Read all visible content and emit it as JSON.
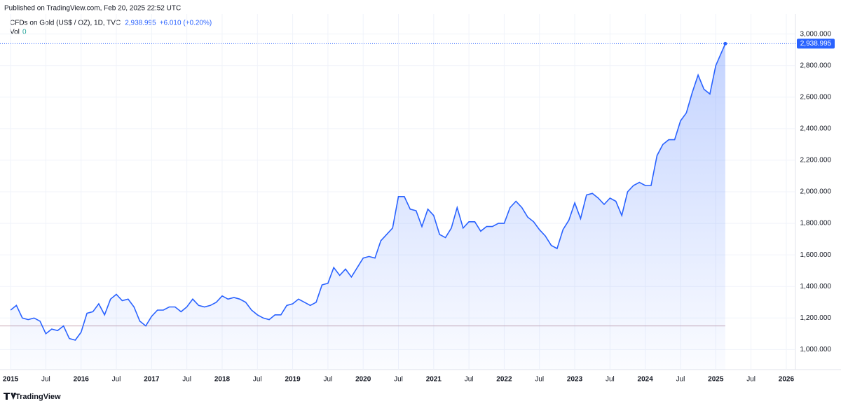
{
  "published": "Published on TradingView.com, Feb 20, 2025 22:52 UTC",
  "footer": "TradingView",
  "chart_data": {
    "type": "area",
    "title": "CFDs on Gold (US$ / OZ), 1D, TVC",
    "change": "+6.010 (+0.20%)",
    "volume_label": "Vol",
    "volume_value": 0,
    "last_price": {
      "value": 2938.995,
      "label": "2,938.995"
    },
    "reference_line": 1150,
    "x": [
      2015.0,
      2015.083,
      2015.167,
      2015.25,
      2015.333,
      2015.417,
      2015.5,
      2015.583,
      2015.667,
      2015.75,
      2015.833,
      2015.917,
      2016.0,
      2016.083,
      2016.167,
      2016.25,
      2016.333,
      2016.417,
      2016.5,
      2016.583,
      2016.667,
      2016.75,
      2016.833,
      2016.917,
      2017.0,
      2017.083,
      2017.167,
      2017.25,
      2017.333,
      2017.417,
      2017.5,
      2017.583,
      2017.667,
      2017.75,
      2017.833,
      2017.917,
      2018.0,
      2018.083,
      2018.167,
      2018.25,
      2018.333,
      2018.417,
      2018.5,
      2018.583,
      2018.667,
      2018.75,
      2018.833,
      2018.917,
      2019.0,
      2019.083,
      2019.167,
      2019.25,
      2019.333,
      2019.417,
      2019.5,
      2019.583,
      2019.667,
      2019.75,
      2019.833,
      2019.917,
      2020.0,
      2020.083,
      2020.167,
      2020.25,
      2020.333,
      2020.417,
      2020.5,
      2020.583,
      2020.667,
      2020.75,
      2020.833,
      2020.917,
      2021.0,
      2021.083,
      2021.167,
      2021.25,
      2021.333,
      2021.417,
      2021.5,
      2021.583,
      2021.667,
      2021.75,
      2021.833,
      2021.917,
      2022.0,
      2022.083,
      2022.167,
      2022.25,
      2022.333,
      2022.417,
      2022.5,
      2022.583,
      2022.667,
      2022.75,
      2022.833,
      2022.917,
      2023.0,
      2023.083,
      2023.167,
      2023.25,
      2023.333,
      2023.417,
      2023.5,
      2023.583,
      2023.667,
      2023.75,
      2023.833,
      2023.917,
      2024.0,
      2024.083,
      2024.167,
      2024.25,
      2024.333,
      2024.417,
      2024.5,
      2024.583,
      2024.667,
      2024.75,
      2024.833,
      2024.917,
      2025.0,
      2025.135
    ],
    "series": [
      {
        "color": "#2962ff",
        "values": [
          1250,
          1280,
          1200,
          1190,
          1200,
          1180,
          1100,
          1130,
          1120,
          1150,
          1070,
          1060,
          1110,
          1230,
          1240,
          1290,
          1220,
          1320,
          1350,
          1310,
          1320,
          1270,
          1180,
          1150,
          1210,
          1250,
          1250,
          1270,
          1270,
          1240,
          1270,
          1320,
          1280,
          1270,
          1280,
          1300,
          1340,
          1320,
          1330,
          1320,
          1300,
          1250,
          1220,
          1200,
          1190,
          1220,
          1220,
          1280,
          1290,
          1320,
          1300,
          1280,
          1300,
          1410,
          1420,
          1520,
          1470,
          1510,
          1460,
          1520,
          1580,
          1590,
          1580,
          1690,
          1730,
          1770,
          1970,
          1970,
          1890,
          1880,
          1780,
          1890,
          1850,
          1730,
          1710,
          1770,
          1900,
          1770,
          1810,
          1810,
          1750,
          1780,
          1780,
          1800,
          1800,
          1900,
          1940,
          1900,
          1840,
          1810,
          1760,
          1720,
          1660,
          1640,
          1760,
          1820,
          1930,
          1830,
          1980,
          1990,
          1960,
          1920,
          1960,
          1940,
          1850,
          2000,
          2040,
          2060,
          2040,
          2040,
          2230,
          2300,
          2330,
          2330,
          2450,
          2500,
          2630,
          2740,
          2650,
          2620,
          2800,
          2938.995
        ]
      }
    ],
    "xlim": [
      2014.85,
      2026.13
    ],
    "xticks": [
      2015,
      {
        "value": 2015.5,
        "label": "Jul"
      },
      2016,
      {
        "value": 2016.5,
        "label": "Jul"
      },
      2017,
      {
        "value": 2017.5,
        "label": "Jul"
      },
      2018,
      {
        "value": 2018.5,
        "label": "Jul"
      },
      2019,
      {
        "value": 2019.5,
        "label": "Jul"
      },
      2020,
      {
        "value": 2020.5,
        "label": "Jul"
      },
      2021,
      {
        "value": 2021.5,
        "label": "Jul"
      },
      2022,
      {
        "value": 2022.5,
        "label": "Jul"
      },
      2023,
      {
        "value": 2023.5,
        "label": "Jul"
      },
      2024,
      {
        "value": 2024.5,
        "label": "Jul"
      },
      2025,
      {
        "value": 2025.5,
        "label": "Jul"
      },
      2026
    ],
    "ylim": [
      873,
      3127
    ],
    "yticks": [
      {
        "value": 1000,
        "label": "1,000.000"
      },
      {
        "value": 1200,
        "label": "1,200.000"
      },
      {
        "value": 1400,
        "label": "1,400.000"
      },
      {
        "value": 1600,
        "label": "1,600.000"
      },
      {
        "value": 1800,
        "label": "1,800.000"
      },
      {
        "value": 2000,
        "label": "2,000.000"
      },
      {
        "value": 2200,
        "label": "2,200.000"
      },
      {
        "value": 2400,
        "label": "2,400.000"
      },
      {
        "value": 2600,
        "label": "2,600.000"
      },
      {
        "value": 2800,
        "label": "2,800.000"
      },
      {
        "value": 3000,
        "label": "3,000.000"
      }
    ],
    "grid": true
  }
}
